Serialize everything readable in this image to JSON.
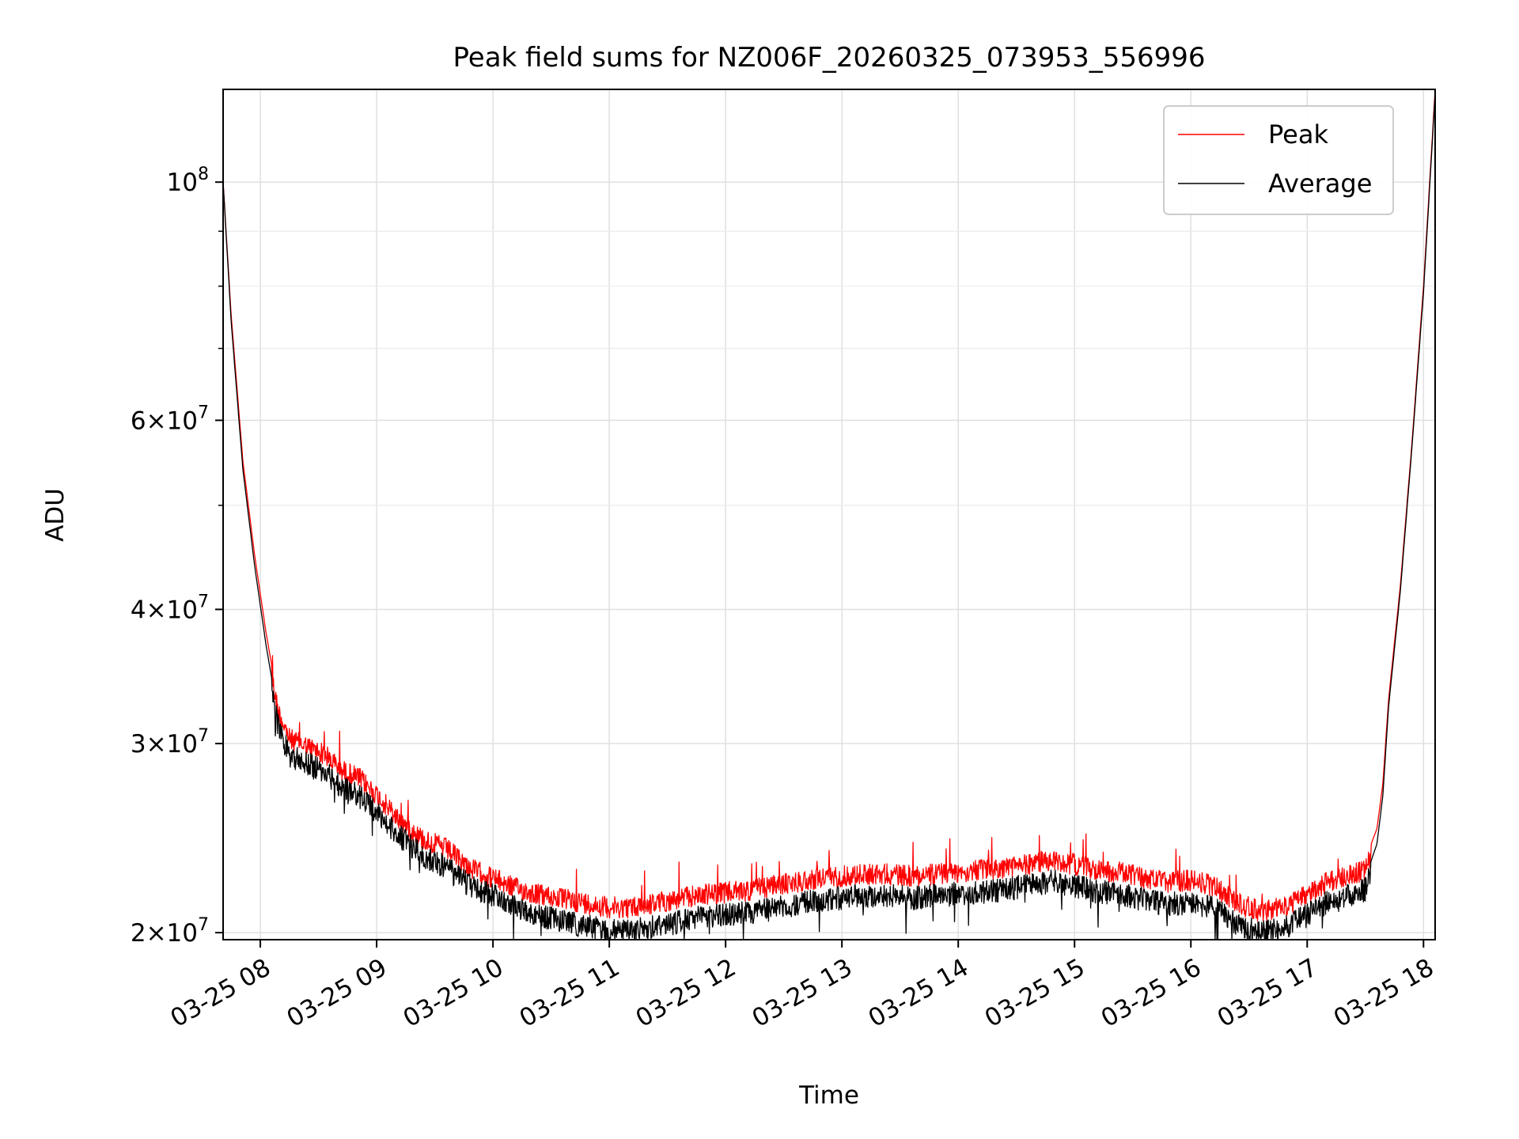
{
  "chart_data": {
    "type": "line",
    "title": "Peak field sums for NZ006F_20260325_073953_556996",
    "xlabel": "Time",
    "ylabel": "ADU",
    "yscale": "log",
    "xlim": [
      7.68,
      18.1
    ],
    "ylim": [
      19700000,
      122000000
    ],
    "grid": true,
    "legend_position": "top-right",
    "x_ticks": [
      {
        "value": 8,
        "label": "03-25 08"
      },
      {
        "value": 9,
        "label": "03-25 09"
      },
      {
        "value": 10,
        "label": "03-25 10"
      },
      {
        "value": 11,
        "label": "03-25 11"
      },
      {
        "value": 12,
        "label": "03-25 12"
      },
      {
        "value": 13,
        "label": "03-25 13"
      },
      {
        "value": 14,
        "label": "03-25 14"
      },
      {
        "value": 15,
        "label": "03-25 15"
      },
      {
        "value": 16,
        "label": "03-25 16"
      },
      {
        "value": 17,
        "label": "03-25 17"
      },
      {
        "value": 18,
        "label": "03-25 18"
      }
    ],
    "y_ticks": [
      {
        "value": 20000000,
        "mant": "2",
        "exp": "7"
      },
      {
        "value": 30000000,
        "mant": "3",
        "exp": "7"
      },
      {
        "value": 40000000,
        "mant": "4",
        "exp": "7"
      },
      {
        "value": 60000000,
        "mant": "6",
        "exp": "7"
      },
      {
        "value": 100000000,
        "mant": "",
        "exp": "8"
      }
    ],
    "y_minor_ticks": [
      50000000,
      70000000,
      80000000,
      90000000
    ],
    "series": [
      {
        "name": "Peak",
        "color": "#ff0000",
        "x": [
          7.68,
          7.75,
          7.85,
          7.95,
          8.05,
          8.15,
          8.25,
          8.4,
          8.55,
          8.7,
          8.85,
          9.0,
          9.2,
          9.4,
          9.6,
          9.8,
          10.0,
          10.2,
          10.4,
          10.6,
          10.8,
          11.0,
          11.2,
          11.4,
          11.6,
          11.8,
          12.0,
          12.2,
          12.4,
          12.6,
          12.8,
          13.0,
          13.2,
          13.4,
          13.6,
          13.8,
          14.0,
          14.2,
          14.4,
          14.6,
          14.8,
          15.0,
          15.2,
          15.4,
          15.6,
          15.8,
          16.0,
          16.2,
          16.4,
          16.6,
          16.8,
          17.0,
          17.2,
          17.35,
          17.5,
          17.6,
          17.65,
          17.7,
          17.8,
          17.9,
          18.0,
          18.1
        ],
        "values": [
          100000000,
          75000000,
          55000000,
          45000000,
          38000000,
          33000000,
          31000000,
          30500000,
          30000000,
          29000000,
          28500000,
          27500000,
          26000000,
          25000000,
          24500000,
          23500000,
          23000000,
          22500000,
          22200000,
          22000000,
          21800000,
          21600000,
          21600000,
          21800000,
          22000000,
          22200000,
          22300000,
          22400000,
          22600000,
          22800000,
          23000000,
          23100000,
          23200000,
          23200000,
          23100000,
          23200000,
          23300000,
          23400000,
          23500000,
          23700000,
          23900000,
          23700000,
          23400000,
          23300000,
          23000000,
          22800000,
          22900000,
          22600000,
          21800000,
          21400000,
          21600000,
          22200000,
          22900000,
          23100000,
          23400000,
          25000000,
          27500000,
          33000000,
          42000000,
          57000000,
          80000000,
          122000000
        ]
      },
      {
        "name": "Average",
        "color": "#000000",
        "x": [
          7.68,
          7.75,
          7.85,
          7.95,
          8.05,
          8.15,
          8.25,
          8.4,
          8.55,
          8.7,
          8.85,
          9.0,
          9.2,
          9.4,
          9.6,
          9.8,
          10.0,
          10.2,
          10.4,
          10.6,
          10.8,
          11.0,
          11.2,
          11.4,
          11.6,
          11.8,
          12.0,
          12.2,
          12.4,
          12.6,
          12.8,
          13.0,
          13.2,
          13.4,
          13.6,
          13.8,
          14.0,
          14.2,
          14.4,
          14.6,
          14.8,
          15.0,
          15.2,
          15.4,
          15.6,
          15.8,
          16.0,
          16.2,
          16.4,
          16.6,
          16.8,
          17.0,
          17.2,
          17.35,
          17.5,
          17.6,
          17.65,
          17.7,
          17.8,
          17.9,
          18.0,
          18.1
        ],
        "values": [
          100000000,
          74000000,
          54000000,
          44000000,
          37000000,
          32000000,
          30000000,
          29500000,
          29000000,
          28000000,
          27500000,
          26500000,
          25200000,
          24200000,
          23600000,
          22700000,
          22200000,
          21700000,
          21300000,
          21000000,
          20800000,
          20600000,
          20600000,
          20800000,
          21000000,
          21200000,
          21300000,
          21400000,
          21600000,
          21800000,
          22000000,
          22100000,
          22200000,
          22200000,
          22100000,
          22200000,
          22300000,
          22400000,
          22500000,
          22700000,
          22900000,
          22700000,
          22400000,
          22300000,
          22000000,
          21800000,
          21900000,
          21600000,
          20900000,
          20500000,
          20700000,
          21300000,
          22000000,
          22200000,
          22500000,
          24200000,
          26800000,
          32500000,
          41500000,
          56500000,
          79000000,
          121000000
        ]
      }
    ]
  }
}
